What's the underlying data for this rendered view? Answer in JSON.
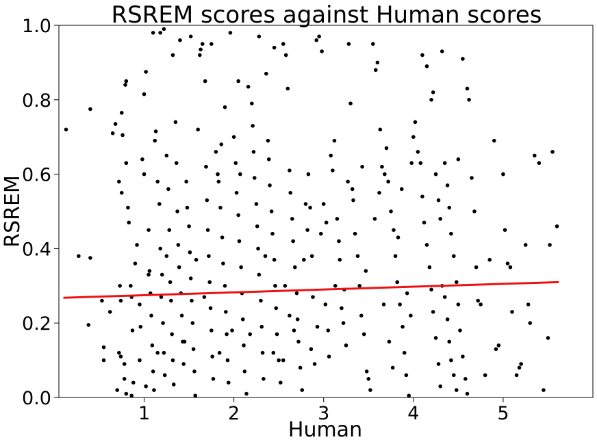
{
  "chart_data": {
    "type": "scatter",
    "title": "RSREM scores against Human scores",
    "xlabel": "Human",
    "ylabel": "RSREM",
    "xlim": [
      0.05,
      6.0
    ],
    "ylim": [
      0.0,
      1.0
    ],
    "xticks": [
      1,
      2,
      3,
      4,
      5
    ],
    "yticks": [
      0.0,
      0.2,
      0.4,
      0.6,
      0.8,
      1.0
    ],
    "xtick_labels": [
      "1",
      "2",
      "3",
      "4",
      "5"
    ],
    "ytick_labels": [
      "0.0",
      "0.2",
      "0.4",
      "0.6",
      "0.8",
      "1.0"
    ],
    "grid": false,
    "point_color": "#000000",
    "trend_color": "#ee1111",
    "trend_line": {
      "x": [
        0.1,
        5.62
      ],
      "y": [
        0.268,
        0.31
      ]
    },
    "points": [
      [
        0.13,
        0.72
      ],
      [
        0.27,
        0.38
      ],
      [
        0.4,
        0.375
      ],
      [
        0.38,
        0.195
      ],
      [
        0.4,
        0.775
      ],
      [
        0.53,
        0.26
      ],
      [
        0.55,
        0.135
      ],
      [
        0.55,
        0.1
      ],
      [
        0.62,
        0.23
      ],
      [
        0.65,
        0.71
      ],
      [
        0.68,
        0.735
      ],
      [
        0.72,
        0.58
      ],
      [
        0.75,
        0.55
      ],
      [
        0.73,
        0.3
      ],
      [
        0.74,
        0.26
      ],
      [
        0.72,
        0.12
      ],
      [
        0.74,
        0.11
      ],
      [
        0.78,
        0.09
      ],
      [
        0.7,
        0.02
      ],
      [
        0.78,
        0.05
      ],
      [
        0.8,
        0.01
      ],
      [
        0.75,
        0.765
      ],
      [
        0.76,
        0.705
      ],
      [
        0.79,
        0.84
      ],
      [
        0.8,
        0.85
      ],
      [
        0.8,
        0.63
      ],
      [
        0.82,
        0.51
      ],
      [
        0.83,
        0.47
      ],
      [
        0.85,
        0.3
      ],
      [
        0.86,
        0.27
      ],
      [
        0.87,
        0.18
      ],
      [
        0.88,
        0.04
      ],
      [
        0.86,
        0.005
      ],
      [
        0.9,
        0.36
      ],
      [
        0.92,
        0.41
      ],
      [
        0.95,
        0.25
      ],
      [
        0.96,
        0.19
      ],
      [
        0.98,
        0.64
      ],
      [
        1.0,
        0.6
      ],
      [
        1.0,
        0.815
      ],
      [
        1.02,
        0.875
      ],
      [
        1.05,
        0.45
      ],
      [
        1.06,
        0.34
      ],
      [
        1.07,
        0.28
      ],
      [
        1.08,
        0.22
      ],
      [
        1.09,
        0.14
      ],
      [
        1.1,
        0.07
      ],
      [
        1.11,
        0.02
      ],
      [
        1.1,
        0.98
      ],
      [
        1.12,
        0.69
      ],
      [
        1.13,
        0.715
      ],
      [
        1.15,
        0.58
      ],
      [
        1.17,
        0.52
      ],
      [
        1.18,
        0.4
      ],
      [
        1.2,
        0.33
      ],
      [
        1.19,
        0.27
      ],
      [
        1.21,
        0.2
      ],
      [
        1.22,
        0.12
      ],
      [
        1.23,
        0.06
      ],
      [
        1.18,
        0.98
      ],
      [
        1.22,
        0.99
      ],
      [
        1.25,
        0.65
      ],
      [
        1.27,
        0.56
      ],
      [
        1.28,
        0.45
      ],
      [
        1.29,
        0.31
      ],
      [
        1.3,
        0.26
      ],
      [
        1.31,
        0.17
      ],
      [
        1.32,
        0.1
      ],
      [
        1.33,
        0.035
      ],
      [
        1.35,
        0.74
      ],
      [
        1.36,
        0.63
      ],
      [
        1.37,
        0.5
      ],
      [
        1.38,
        0.41
      ],
      [
        1.39,
        0.35
      ],
      [
        1.41,
        0.28
      ],
      [
        1.42,
        0.22
      ],
      [
        1.43,
        0.15
      ],
      [
        1.44,
        0.09
      ],
      [
        1.47,
        0.58
      ],
      [
        1.48,
        0.51
      ],
      [
        1.5,
        0.46
      ],
      [
        1.51,
        0.39
      ],
      [
        1.52,
        0.32
      ],
      [
        1.53,
        0.26
      ],
      [
        1.54,
        0.2
      ],
      [
        1.55,
        0.13
      ],
      [
        1.56,
        0.07
      ],
      [
        1.57,
        0.005
      ],
      [
        1.6,
        0.72
      ],
      [
        1.62,
        0.92
      ],
      [
        1.63,
        0.935
      ],
      [
        1.65,
        0.95
      ],
      [
        1.68,
        0.85
      ],
      [
        1.69,
        0.62
      ],
      [
        1.7,
        0.53
      ],
      [
        1.71,
        0.45
      ],
      [
        1.72,
        0.38
      ],
      [
        1.73,
        0.31
      ],
      [
        1.74,
        0.24
      ],
      [
        1.75,
        0.18
      ],
      [
        1.76,
        0.11
      ],
      [
        1.77,
        0.05
      ],
      [
        1.8,
        0.66
      ],
      [
        1.82,
        0.6
      ],
      [
        1.83,
        0.58
      ],
      [
        1.85,
        0.51
      ],
      [
        1.86,
        0.68
      ],
      [
        1.87,
        0.43
      ],
      [
        1.88,
        0.36
      ],
      [
        1.9,
        0.3
      ],
      [
        1.91,
        0.23
      ],
      [
        1.92,
        0.17
      ],
      [
        1.93,
        0.1
      ],
      [
        1.94,
        0.04
      ],
      [
        1.96,
        0.98
      ],
      [
        2.0,
        0.7
      ],
      [
        2.02,
        0.63
      ],
      [
        2.03,
        0.55
      ],
      [
        2.05,
        0.49
      ],
      [
        2.06,
        0.42
      ],
      [
        2.08,
        0.35
      ],
      [
        2.09,
        0.28
      ],
      [
        2.1,
        0.21
      ],
      [
        2.11,
        0.14
      ],
      [
        2.12,
        0.07
      ],
      [
        2.14,
        0.01
      ],
      [
        2.16,
        0.835
      ],
      [
        2.2,
        0.79
      ],
      [
        2.21,
        0.73
      ],
      [
        2.22,
        0.66
      ],
      [
        2.23,
        0.59
      ],
      [
        2.25,
        0.52
      ],
      [
        2.26,
        0.46
      ],
      [
        2.27,
        0.4
      ],
      [
        2.28,
        0.33
      ],
      [
        2.3,
        0.26
      ],
      [
        2.31,
        0.19
      ],
      [
        2.32,
        0.12
      ],
      [
        2.33,
        0.05
      ],
      [
        2.36,
        0.87
      ],
      [
        2.38,
        0.69
      ],
      [
        2.39,
        0.64
      ],
      [
        2.4,
        0.57
      ],
      [
        2.42,
        0.5
      ],
      [
        2.43,
        0.44
      ],
      [
        2.45,
        0.37
      ],
      [
        2.46,
        0.3
      ],
      [
        2.47,
        0.24
      ],
      [
        2.48,
        0.17
      ],
      [
        2.5,
        0.1
      ],
      [
        2.52,
        0.04
      ],
      [
        2.55,
        0.95
      ],
      [
        2.58,
        0.92
      ],
      [
        2.6,
        0.83
      ],
      [
        2.62,
        0.61
      ],
      [
        2.63,
        0.55
      ],
      [
        2.65,
        0.48
      ],
      [
        2.66,
        0.42
      ],
      [
        2.68,
        0.35
      ],
      [
        2.7,
        0.28
      ],
      [
        2.71,
        0.21
      ],
      [
        2.72,
        0.15
      ],
      [
        2.74,
        0.08
      ],
      [
        2.76,
        0.02
      ],
      [
        2.8,
        0.52
      ],
      [
        2.83,
        0.6
      ],
      [
        2.85,
        0.51
      ],
      [
        2.86,
        0.13
      ],
      [
        2.88,
        0.27
      ],
      [
        2.9,
        0.09
      ],
      [
        2.92,
        0.96
      ],
      [
        2.95,
        0.97
      ],
      [
        2.98,
        0.93
      ],
      [
        3.0,
        0.52
      ],
      [
        3.02,
        0.25
      ],
      [
        3.05,
        0.18
      ],
      [
        3.08,
        0.65
      ],
      [
        3.1,
        0.61
      ],
      [
        3.12,
        0.69
      ],
      [
        3.15,
        0.48
      ],
      [
        3.17,
        0.42
      ],
      [
        3.18,
        0.37
      ],
      [
        3.2,
        0.24
      ],
      [
        3.22,
        0.2
      ],
      [
        3.25,
        0.14
      ],
      [
        3.28,
        0.95
      ],
      [
        3.3,
        0.79
      ],
      [
        3.32,
        0.56
      ],
      [
        3.35,
        0.44
      ],
      [
        3.38,
        0.38
      ],
      [
        3.4,
        0.3
      ],
      [
        3.42,
        0.22
      ],
      [
        3.45,
        0.17
      ],
      [
        3.48,
        0.07
      ],
      [
        3.5,
        0.05
      ],
      [
        3.52,
        0.02
      ],
      [
        3.55,
        0.95
      ],
      [
        3.58,
        0.88
      ],
      [
        3.6,
        0.9
      ],
      [
        3.62,
        0.55
      ],
      [
        3.65,
        0.62
      ],
      [
        3.68,
        0.6
      ],
      [
        3.7,
        0.67
      ],
      [
        3.72,
        0.58
      ],
      [
        3.75,
        0.5
      ],
      [
        3.78,
        0.45
      ],
      [
        3.8,
        0.38
      ],
      [
        3.82,
        0.31
      ],
      [
        3.85,
        0.25
      ],
      [
        3.88,
        0.19
      ],
      [
        3.9,
        0.12
      ],
      [
        3.92,
        0.06
      ],
      [
        3.95,
        0.005
      ],
      [
        3.98,
        0.63
      ],
      [
        4.0,
        0.7
      ],
      [
        4.02,
        0.74
      ],
      [
        4.05,
        0.66
      ],
      [
        4.08,
        0.63
      ],
      [
        4.1,
        0.54
      ],
      [
        4.12,
        0.47
      ],
      [
        4.15,
        0.41
      ],
      [
        4.18,
        0.35
      ],
      [
        4.2,
        0.29
      ],
      [
        4.22,
        0.23
      ],
      [
        4.25,
        0.16
      ],
      [
        4.28,
        0.09
      ],
      [
        4.3,
        0.03
      ],
      [
        4.32,
        0.93
      ],
      [
        4.35,
        0.63
      ],
      [
        4.38,
        0.57
      ],
      [
        4.4,
        0.51
      ],
      [
        4.42,
        0.44
      ],
      [
        4.45,
        0.38
      ],
      [
        4.48,
        0.31
      ],
      [
        4.5,
        0.25
      ],
      [
        4.52,
        0.18
      ],
      [
        4.55,
        0.11
      ],
      [
        4.58,
        0.05
      ],
      [
        4.6,
        0.01
      ],
      [
        4.1,
        0.92
      ],
      [
        4.15,
        0.89
      ],
      [
        4.2,
        0.8
      ],
      [
        4.22,
        0.82
      ],
      [
        4.25,
        0.6
      ],
      [
        4.28,
        0.53
      ],
      [
        4.3,
        0.48
      ],
      [
        4.32,
        0.3
      ],
      [
        4.35,
        0.27
      ],
      [
        4.38,
        0.21
      ],
      [
        4.4,
        0.15
      ],
      [
        4.42,
        0.1
      ],
      [
        4.45,
        0.06
      ],
      [
        4.48,
        0.02
      ],
      [
        4.5,
        0.64
      ],
      [
        4.55,
        0.91
      ],
      [
        4.6,
        0.83
      ],
      [
        4.62,
        0.8
      ],
      [
        4.65,
        0.59
      ],
      [
        4.68,
        0.5
      ],
      [
        4.7,
        0.35
      ],
      [
        4.72,
        0.26
      ],
      [
        4.75,
        0.25
      ],
      [
        4.8,
        0.06
      ],
      [
        4.85,
        0.37
      ],
      [
        4.9,
        0.69
      ],
      [
        4.92,
        0.13
      ],
      [
        4.95,
        0.14
      ],
      [
        5.0,
        0.6
      ],
      [
        5.02,
        0.45
      ],
      [
        5.05,
        0.36
      ],
      [
        5.08,
        0.35
      ],
      [
        5.1,
        0.23
      ],
      [
        5.15,
        0.06
      ],
      [
        5.18,
        0.08
      ],
      [
        5.2,
        0.09
      ],
      [
        5.25,
        0.41
      ],
      [
        5.28,
        0.25
      ],
      [
        5.3,
        0.2
      ],
      [
        5.35,
        0.65
      ],
      [
        5.4,
        0.63
      ],
      [
        5.45,
        0.02
      ],
      [
        5.5,
        0.16
      ],
      [
        5.52,
        0.41
      ],
      [
        5.55,
        0.66
      ],
      [
        5.6,
        0.46
      ],
      [
        1.05,
        0.33
      ],
      [
        1.15,
        0.12
      ],
      [
        1.25,
        0.38
      ],
      [
        1.45,
        0.15
      ],
      [
        1.58,
        0.37
      ],
      [
        1.67,
        0.27
      ],
      [
        1.84,
        0.12
      ],
      [
        1.98,
        0.18
      ],
      [
        2.07,
        0.6
      ],
      [
        2.18,
        0.17
      ],
      [
        2.35,
        0.38
      ],
      [
        2.44,
        0.12
      ],
      [
        2.57,
        0.3
      ],
      [
        2.67,
        0.18
      ],
      [
        2.78,
        0.37
      ],
      [
        2.82,
        0.45
      ],
      [
        2.87,
        0.38
      ],
      [
        2.93,
        0.19
      ],
      [
        2.97,
        0.44
      ],
      [
        3.03,
        0.47
      ],
      [
        3.06,
        0.11
      ],
      [
        3.13,
        0.3
      ],
      [
        3.23,
        0.29
      ],
      [
        3.27,
        0.58
      ],
      [
        3.33,
        0.53
      ],
      [
        3.43,
        0.62
      ],
      [
        3.47,
        0.34
      ],
      [
        3.57,
        0.48
      ],
      [
        3.63,
        0.72
      ],
      [
        3.67,
        0.25
      ],
      [
        3.73,
        0.15
      ],
      [
        3.77,
        0.08
      ],
      [
        3.83,
        0.43
      ],
      [
        3.87,
        0.56
      ],
      [
        3.93,
        0.28
      ],
      [
        3.97,
        0.22
      ],
      [
        0.95,
        0.1
      ],
      [
        1.02,
        0.03
      ],
      [
        1.32,
        0.92
      ],
      [
        1.4,
        0.96
      ],
      [
        1.52,
        0.97
      ],
      [
        1.75,
        0.95
      ],
      [
        1.9,
        0.78
      ],
      [
        2.05,
        0.85
      ],
      [
        2.28,
        0.97
      ],
      [
        2.45,
        0.94
      ],
      [
        2.55,
        0.1
      ],
      [
        2.62,
        0.22
      ]
    ]
  }
}
